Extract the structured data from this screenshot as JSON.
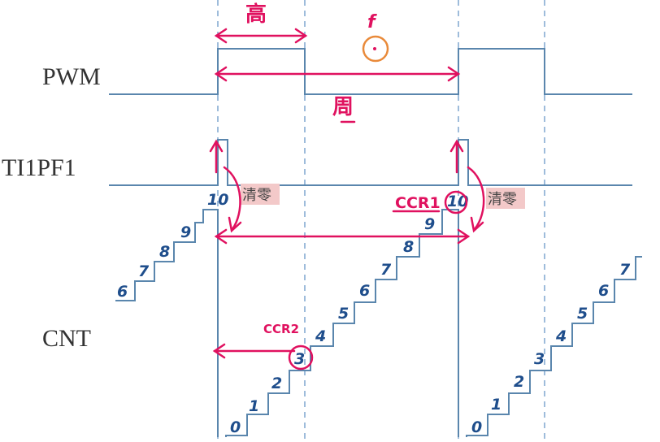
{
  "signals": {
    "pwm": "PWM",
    "ti1pf1": "TI1PF1",
    "cnt": "CNT"
  },
  "annotations": {
    "clear_1": "清零",
    "clear_2": "清零",
    "ccr1": "CCR1",
    "ccr2": "CCR2",
    "high": "高",
    "period": "周",
    "frequency": "f"
  },
  "counter": {
    "before_reset": [
      "6",
      "7",
      "8",
      "9",
      "10"
    ],
    "cycle": [
      "0",
      "1",
      "2",
      "3",
      "4",
      "5",
      "6",
      "7",
      "8",
      "9",
      "10"
    ],
    "after_reset": [
      "0",
      "1",
      "2",
      "3",
      "4",
      "5",
      "6",
      "7"
    ],
    "ccr2_value": "3",
    "ccr1_value": "10"
  },
  "colors": {
    "waveform": "#5a86ad",
    "dashed": "#7fa6cf",
    "annotation": "#e0115f",
    "highlight": "#f3c9c9",
    "circle_orange": "#e98a3a",
    "numbers": "#1f4e8c"
  }
}
